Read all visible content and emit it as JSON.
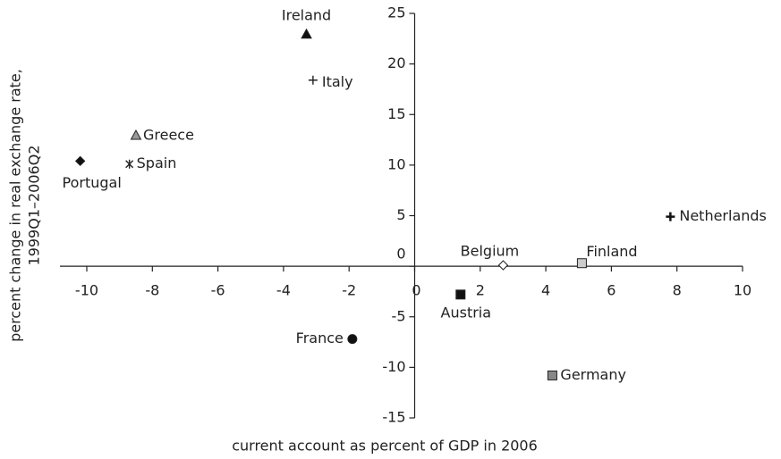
{
  "chart_data": {
    "type": "scatter",
    "x_label": "current account as percent of GDP in 2006",
    "y_label": [
      "percent change in real exchange rate,",
      "1999Q1–2006Q2"
    ],
    "xlim": [
      -10,
      10
    ],
    "ylim": [
      -15,
      25
    ],
    "xticks": [
      -10,
      -8,
      -6,
      -4,
      -2,
      0,
      2,
      4,
      6,
      8,
      10
    ],
    "yticks": [
      -15,
      -10,
      -5,
      0,
      5,
      10,
      15,
      20,
      25
    ],
    "series": [
      {
        "name": "Ireland",
        "marker": "triangle",
        "color": "#111111",
        "x": [
          -3.3
        ],
        "y": [
          22.9
        ]
      },
      {
        "name": "Italy",
        "marker": "plus",
        "color": "#222222",
        "x": [
          -3.1
        ],
        "y": [
          18.4
        ]
      },
      {
        "name": "Greece",
        "marker": "triangle",
        "color": "#999999",
        "x": [
          -8.5
        ],
        "y": [
          12.9
        ]
      },
      {
        "name": "Portugal",
        "marker": "diamond",
        "color": "#111111",
        "x": [
          -10.2
        ],
        "y": [
          10.4
        ]
      },
      {
        "name": "Spain",
        "marker": "asterisk",
        "color": "#222222",
        "x": [
          -8.7
        ],
        "y": [
          10.1
        ]
      },
      {
        "name": "Netherlands",
        "marker": "boldplus",
        "color": "#111111",
        "x": [
          7.8
        ],
        "y": [
          4.9
        ]
      },
      {
        "name": "Belgium",
        "marker": "diamond",
        "color": "#ffffff",
        "x": [
          2.7
        ],
        "y": [
          0.1
        ]
      },
      {
        "name": "Finland",
        "marker": "square",
        "color": "#cccccc",
        "x": [
          5.1
        ],
        "y": [
          0.3
        ]
      },
      {
        "name": "Austria",
        "marker": "square",
        "color": "#111111",
        "x": [
          1.4
        ],
        "y": [
          -2.8
        ]
      },
      {
        "name": "France",
        "marker": "circle",
        "color": "#111111",
        "x": [
          -1.9
        ],
        "y": [
          -7.2
        ]
      },
      {
        "name": "Germany",
        "marker": "square",
        "color": "#888888",
        "x": [
          4.2
        ],
        "y": [
          -10.8
        ]
      }
    ]
  }
}
